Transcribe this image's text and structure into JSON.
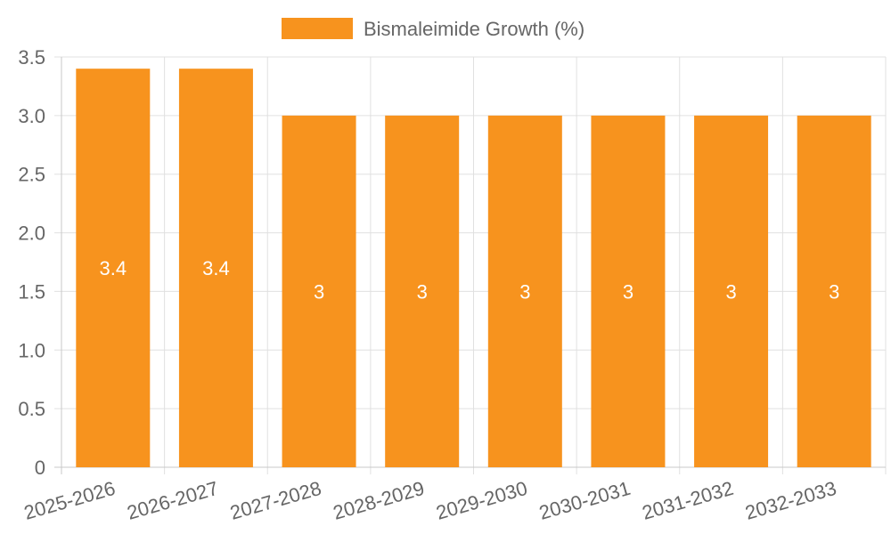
{
  "chart_data": {
    "type": "bar",
    "title": "",
    "xlabel": "",
    "ylabel": "",
    "categories": [
      "2025-2026",
      "2026-2027",
      "2027-2028",
      "2028-2029",
      "2029-2030",
      "2030-2031",
      "2031-2032",
      "2032-2033"
    ],
    "series": [
      {
        "name": "Bismaleimide Growth (%)",
        "values": [
          3.4,
          3.4,
          3,
          3,
          3,
          3,
          3,
          3
        ],
        "color": "#f7931e"
      }
    ],
    "data_labels": [
      "3.4",
      "3.4",
      "3",
      "3",
      "3",
      "3",
      "3",
      "3"
    ],
    "ylim": [
      0,
      3.5
    ],
    "y_ticks": [
      0,
      0.5,
      1.0,
      1.5,
      2.0,
      2.5,
      3.0,
      3.5
    ],
    "y_tick_labels": [
      "0",
      "0.5",
      "1.0",
      "1.5",
      "2.0",
      "2.5",
      "3.0",
      "3.5"
    ],
    "legend_position": "top-center",
    "grid": true,
    "colors": {
      "grid": "#e0e0e0",
      "axis": "#c8c8c8",
      "text": "#666666",
      "label": "#ffffff"
    }
  }
}
